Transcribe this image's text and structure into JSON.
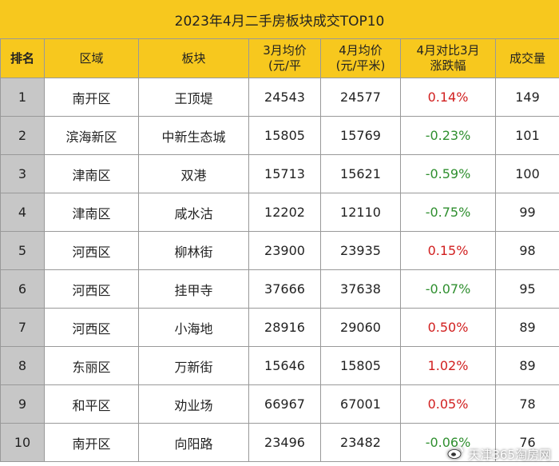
{
  "title": "2023年4月二手房板块成交TOP10",
  "headers": {
    "rank": "排名",
    "district": "区域",
    "block": "板块",
    "march_line1": "3月均价",
    "march_line2": "(元/平",
    "april_line1": "4月均价",
    "april_line2": "(元/平米)",
    "change_line1": "4月对比3月",
    "change_line2": "涨跌幅",
    "volume": "成交量"
  },
  "rows": [
    {
      "rank": "1",
      "district": "南开区",
      "block": "王顶堤",
      "march": "24543",
      "april": "24577",
      "change": "0.14%",
      "volume": "149"
    },
    {
      "rank": "2",
      "district": "滨海新区",
      "block": "中新生态城",
      "march": "15805",
      "april": "15769",
      "change": "-0.23%",
      "volume": "101"
    },
    {
      "rank": "3",
      "district": "津南区",
      "block": "双港",
      "march": "15713",
      "april": "15621",
      "change": "-0.59%",
      "volume": "100"
    },
    {
      "rank": "4",
      "district": "津南区",
      "block": "咸水沽",
      "march": "12202",
      "april": "12110",
      "change": "-0.75%",
      "volume": "99"
    },
    {
      "rank": "5",
      "district": "河西区",
      "block": "柳林街",
      "march": "23900",
      "april": "23935",
      "change": "0.15%",
      "volume": "98"
    },
    {
      "rank": "6",
      "district": "河西区",
      "block": "挂甲寺",
      "march": "37666",
      "april": "37638",
      "change": "-0.07%",
      "volume": "95"
    },
    {
      "rank": "7",
      "district": "河西区",
      "block": "小海地",
      "march": "28916",
      "april": "29060",
      "change": "0.50%",
      "volume": "89"
    },
    {
      "rank": "8",
      "district": "东丽区",
      "block": "万新街",
      "march": "15646",
      "april": "15805",
      "change": "1.02%",
      "volume": "89"
    },
    {
      "rank": "9",
      "district": "和平区",
      "block": "劝业场",
      "march": "66967",
      "april": "67001",
      "change": "0.05%",
      "volume": "78"
    },
    {
      "rank": "10",
      "district": "南开区",
      "block": "向阳路",
      "march": "23496",
      "april": "23482",
      "change": "-0.06%",
      "volume": "76"
    }
  ],
  "colors": {
    "header_bg": "#f7c81e",
    "rank_bg": "#c7c7c7",
    "increase": "#d11f1f",
    "decrease": "#2f8f2f"
  },
  "watermark": {
    "icon": "weibo-icon",
    "text": "天津365淘房网"
  }
}
